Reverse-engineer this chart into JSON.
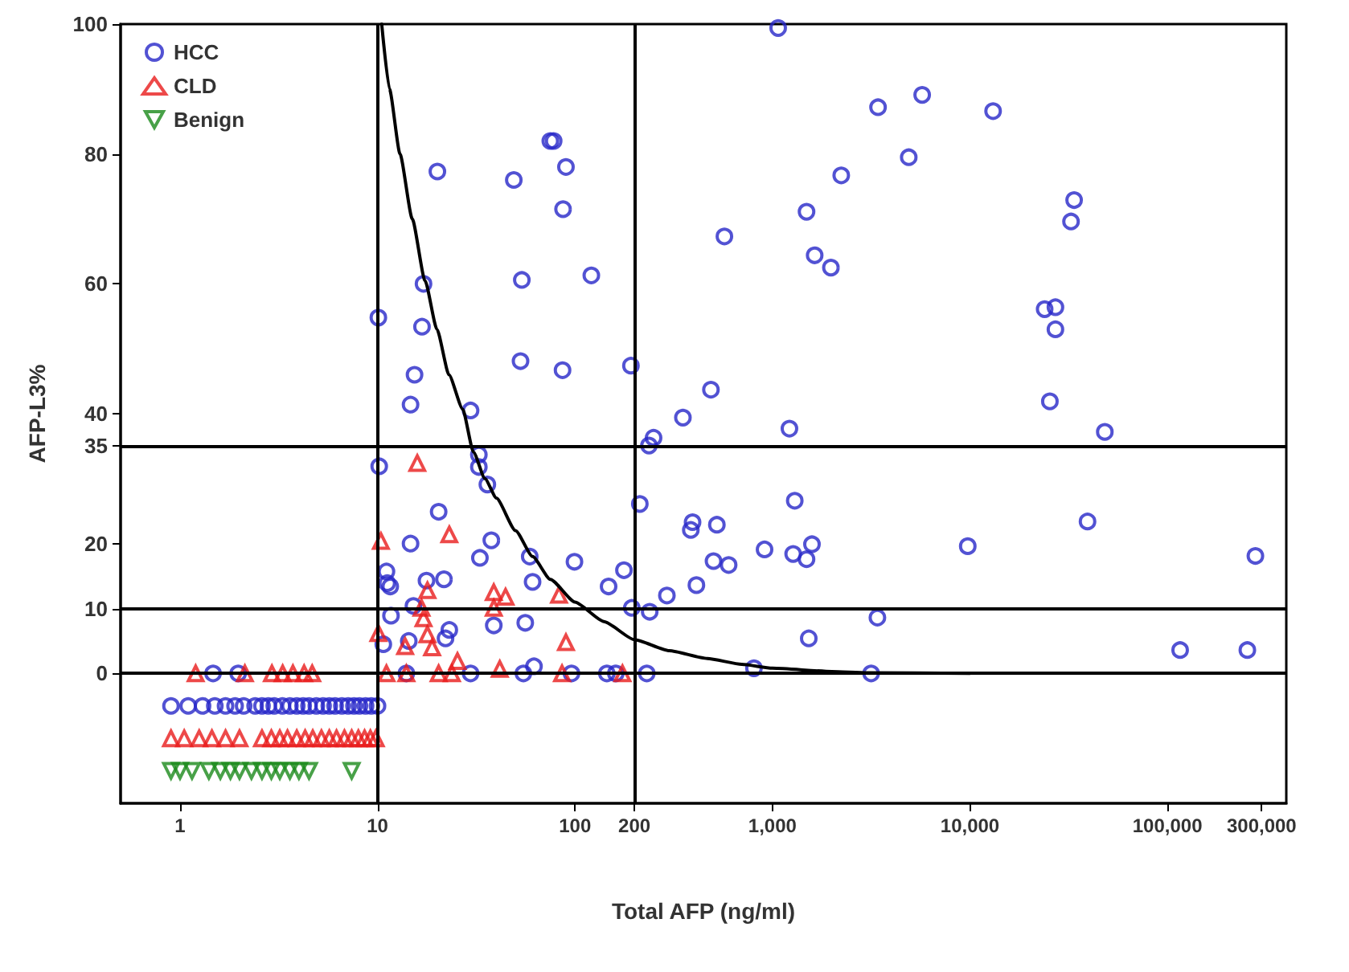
{
  "chart_data": {
    "type": "scatter",
    "xlabel": "Total AFP (ng/ml)",
    "ylabel": "AFP-L3%",
    "log": "x",
    "legend": "top left",
    "xlim": [
      0.5,
      400000
    ],
    "ylim": [
      -20,
      100
    ],
    "xticks": [
      1,
      10,
      100,
      200,
      {
        "value": 1000,
        "label": "1,000"
      },
      {
        "value": 10000,
        "label": "10,000"
      },
      {
        "value": 100000,
        "label": "100,000"
      },
      {
        "value": 300000,
        "label": "300,000"
      }
    ],
    "yticks": [
      0,
      10,
      20,
      35,
      40,
      60,
      80,
      100
    ],
    "ref_lines": [
      {
        "axis": "x",
        "value": 10,
        "color": "#000000"
      },
      {
        "axis": "x",
        "value": 200,
        "color": "#000000"
      },
      {
        "axis": "y",
        "value": 0,
        "color": "#000000"
      },
      {
        "axis": "y",
        "value": 10,
        "color": "#000000"
      },
      {
        "axis": "y",
        "value": 35,
        "color": "#000000"
      }
    ],
    "series": [
      {
        "name": "HCC",
        "color": "#2727c8",
        "marker": "circle",
        "x": [
          75,
          78,
          20.1,
          49,
          90,
          87,
          571,
          17.1,
          53.8,
          121,
          10.1,
          16.8,
          15.4,
          14.7,
          53,
          86.5,
          192,
          488,
          352,
          29.6,
          1069,
          3425,
          5730,
          13100,
          4900,
          2230,
          1488,
          1636,
          1977,
          33700,
          32500,
          23900,
          27100,
          27100,
          25400,
          1219,
          48200,
          1297,
          523,
          503,
          600,
          912,
          1273,
          1585,
          1488,
          9750,
          39400,
          279000,
          3400,
          1527,
          806,
          3160,
          116000,
          254000,
          250,
          237,
          10.2,
          32.6,
          32.6,
          36,
          20.4,
          213,
          394,
          386,
          14.7,
          37.7,
          33,
          59,
          99.4,
          11.1,
          11.2,
          11.6,
          17.7,
          21.7,
          61,
          177,
          148,
          412,
          292,
          194,
          239,
          15.2,
          11.7,
          38.8,
          56,
          23.1,
          22.1,
          14.4,
          10.7,
          1.47,
          1.97,
          14,
          29.6,
          54.8,
          62,
          96,
          145,
          161,
          231,
          0.9,
          1.1,
          1.3,
          1.5,
          1.7,
          1.9,
          2.1,
          2.4,
          2.6,
          2.8,
          3.0,
          3.3,
          3.6,
          3.9,
          4.2,
          4.5,
          4.9,
          5.3,
          5.7,
          6.1,
          6.6,
          7.1,
          7.6,
          8.1,
          8.7,
          9.3,
          10
        ],
        "values": [
          82,
          82,
          77.3,
          76,
          78,
          71.5,
          67.3,
          60,
          60.6,
          61.3,
          54.8,
          53.4,
          46,
          41.4,
          48.1,
          46.7,
          47.4,
          43.7,
          39.4,
          40.5,
          99.4,
          87.2,
          89.1,
          86.6,
          79.5,
          76.7,
          71.1,
          64.4,
          62.5,
          72.9,
          69.6,
          56.1,
          56.4,
          53,
          41.9,
          37.7,
          37.2,
          26.6,
          22.9,
          17.3,
          16.7,
          19.1,
          18.4,
          19.9,
          17.6,
          19.6,
          23.4,
          18.1,
          8.6,
          5.4,
          0.8,
          0,
          3.6,
          3.6,
          36.3,
          35.1,
          31.9,
          33.7,
          31.8,
          29.1,
          24.9,
          26.1,
          23.3,
          22.1,
          20,
          20.5,
          17.8,
          18,
          17.2,
          15.7,
          13.9,
          13.4,
          14.3,
          14.5,
          14.1,
          15.9,
          13.4,
          13.6,
          12,
          10.1,
          9.5,
          10.4,
          8.9,
          7.4,
          7.8,
          6.7,
          5.4,
          5,
          4.5,
          0,
          0,
          0,
          0,
          0,
          1.1,
          0,
          0,
          0,
          0,
          -5,
          -5,
          -5,
          -5,
          -5,
          -5,
          -5,
          -5,
          -5,
          -5,
          -5,
          -5,
          -5,
          -5,
          -5,
          -5,
          -5,
          -5,
          -5,
          -5,
          -5,
          -5,
          -5,
          -5,
          -5,
          -5,
          -5
        ]
      },
      {
        "name": "CLD",
        "color": "#e81c1c",
        "marker": "triangle",
        "x": [
          15.9,
          10.4,
          23.1,
          17.9,
          16.7,
          17.1,
          17.9,
          18.9,
          13.8,
          10.1,
          38.8,
          44.5,
          38.8,
          83,
          90,
          25.4,
          41.6,
          11.1,
          14,
          20.4,
          23.8,
          86,
          174,
          1.2,
          2.13,
          2.92,
          3.31,
          3.73,
          4.25,
          4.67,
          0.9,
          1.05,
          1.25,
          1.45,
          1.7,
          2.0,
          2.6,
          2.9,
          3.2,
          3.5,
          3.9,
          4.3,
          4.7,
          5.2,
          5.7,
          6.2,
          6.8,
          7.4,
          8.0,
          8.6,
          9.2,
          9.8
        ],
        "values": [
          32.4,
          20.4,
          21.4,
          12.8,
          10.1,
          8.5,
          6,
          4,
          4.2,
          6.2,
          12.5,
          11.8,
          10.1,
          12.1,
          4.8,
          1.9,
          0.7,
          0,
          0,
          0,
          0,
          0,
          0,
          0,
          0,
          0,
          0,
          0,
          0,
          0,
          -10,
          -10,
          -10,
          -10,
          -10,
          -10,
          -10,
          -10,
          -10,
          -10,
          -10,
          -10,
          -10,
          -10,
          -10,
          -10,
          -10,
          -10,
          -10,
          -10,
          -10,
          -10
        ]
      },
      {
        "name": "Benign",
        "color": "#1a8a1a",
        "marker": "triangle_down",
        "x": [
          0.9,
          1.0,
          1.15,
          1.4,
          1.6,
          1.8,
          2.0,
          2.3,
          2.6,
          2.9,
          3.2,
          3.6,
          4.0,
          4.5,
          7.4
        ],
        "values": [
          -15,
          -15,
          -15,
          -15,
          -15,
          -15,
          -15,
          -15,
          -15,
          -15,
          -15,
          -15,
          -15,
          -15,
          -15
        ]
      },
      {
        "type": "line",
        "color": "#000000",
        "marker": "none",
        "line_style": "solid",
        "x": [
          10.5,
          11.5,
          13,
          15,
          17.4,
          20,
          23,
          27,
          30.6,
          35,
          40,
          50,
          61,
          75,
          100,
          140,
          200,
          300,
          468,
          700,
          1000,
          2000,
          3000,
          10000
        ],
        "values": [
          100,
          90,
          80,
          70,
          60.5,
          53,
          46,
          40.7,
          34.1,
          30,
          27,
          22,
          18,
          14.5,
          11,
          8,
          5.2,
          3.5,
          2.3,
          1.4,
          0.8,
          0.3,
          0.1,
          0
        ]
      }
    ]
  }
}
